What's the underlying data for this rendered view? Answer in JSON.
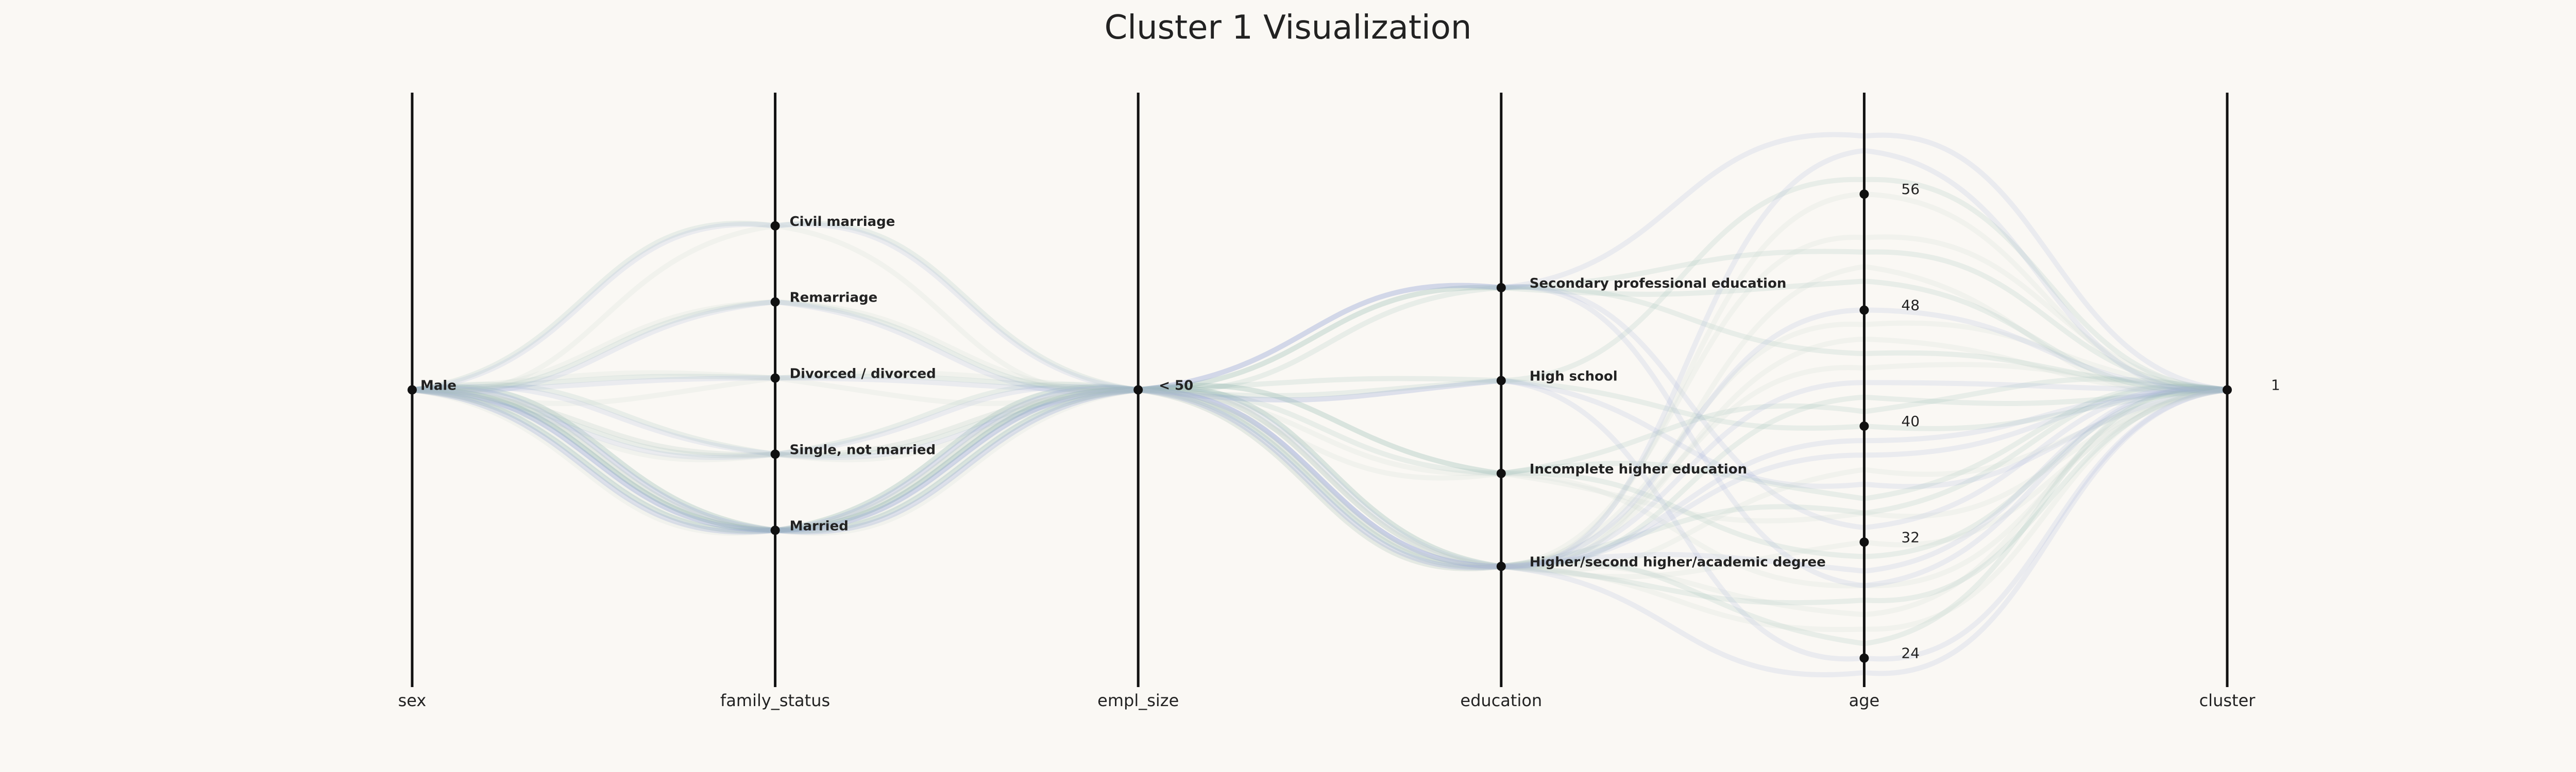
{
  "chart_data": {
    "type": "parallel_coordinates",
    "title": "Cluster 1 Visualization",
    "line_colors": [
      "#8fb5ac",
      "#9aa8d8",
      "#c8d4d0"
    ],
    "axis_color": "#111111",
    "axes": [
      {
        "name": "sex",
        "ticks": [
          {
            "label": "Male",
            "value": 0
          }
        ],
        "range": [
          -1,
          1
        ]
      },
      {
        "name": "family_status",
        "ticks": [
          {
            "label": "Civil marriage",
            "value": 4
          },
          {
            "label": "Remarriage",
            "value": 3
          },
          {
            "label": "Divorced / divorced",
            "value": 2
          },
          {
            "label": "Single, not married",
            "value": 1
          },
          {
            "label": "Married",
            "value": 0
          }
        ],
        "range": [
          -2.06,
          5.75
        ]
      },
      {
        "name": "empl_size",
        "ticks": [
          {
            "label": "< 50",
            "value": 0
          }
        ],
        "range": [
          -1,
          1
        ]
      },
      {
        "name": "education",
        "ticks": [
          {
            "label": "Secondary professional education",
            "value": 3
          },
          {
            "label": "High school",
            "value": 2
          },
          {
            "label": "Incomplete higher education",
            "value": 1
          },
          {
            "label": "Higher/second higher/academic degree",
            "value": 0
          }
        ],
        "range": [
          -1.3,
          5.1
        ]
      },
      {
        "name": "age",
        "ticks": [
          {
            "label": "56",
            "value": 56
          },
          {
            "label": "48",
            "value": 48
          },
          {
            "label": "40",
            "value": 40
          },
          {
            "label": "32",
            "value": 32
          },
          {
            "label": "24",
            "value": 24
          }
        ],
        "range": [
          22,
          63
        ]
      },
      {
        "name": "cluster",
        "ticks": [
          {
            "label": "1",
            "value": 1
          }
        ],
        "range": [
          0,
          2
        ]
      }
    ],
    "records": [
      {
        "sex": 0,
        "family_status": 0,
        "empl_size": 0,
        "education": 0,
        "age": 34,
        "cluster": 1
      },
      {
        "sex": 0,
        "family_status": 0,
        "empl_size": 0,
        "education": 0,
        "age": 30,
        "cluster": 1
      },
      {
        "sex": 0,
        "family_status": 0,
        "empl_size": 0,
        "education": 0,
        "age": 27,
        "cluster": 1
      },
      {
        "sex": 0,
        "family_status": 0,
        "empl_size": 0,
        "education": 3,
        "age": 45,
        "cluster": 1
      },
      {
        "sex": 0,
        "family_status": 0,
        "empl_size": 0,
        "education": 0,
        "age": 38,
        "cluster": 1
      },
      {
        "sex": 0,
        "family_status": 0,
        "empl_size": 0,
        "education": 1,
        "age": 29,
        "cluster": 1
      },
      {
        "sex": 0,
        "family_status": 0,
        "empl_size": 0,
        "education": 0,
        "age": 42,
        "cluster": 1
      },
      {
        "sex": 0,
        "family_status": 0,
        "empl_size": 0,
        "education": 2,
        "age": 36,
        "cluster": 1
      },
      {
        "sex": 0,
        "family_status": 0,
        "empl_size": 0,
        "education": 0,
        "age": 51,
        "cluster": 1
      },
      {
        "sex": 0,
        "family_status": 0,
        "empl_size": 0,
        "education": 0,
        "age": 25,
        "cluster": 1
      },
      {
        "sex": 0,
        "family_status": 0,
        "empl_size": 0,
        "education": 3,
        "age": 33,
        "cluster": 1
      },
      {
        "sex": 0,
        "family_status": 0,
        "empl_size": 0,
        "education": 0,
        "age": 47,
        "cluster": 1
      },
      {
        "sex": 0,
        "family_status": 0,
        "empl_size": 0,
        "education": 1,
        "age": 31,
        "cluster": 1
      },
      {
        "sex": 0,
        "family_status": 0,
        "empl_size": 0,
        "education": 0,
        "age": 39,
        "cluster": 1
      },
      {
        "sex": 0,
        "family_status": 1,
        "empl_size": 0,
        "education": 0,
        "age": 26,
        "cluster": 1
      },
      {
        "sex": 0,
        "family_status": 1,
        "empl_size": 0,
        "education": 0,
        "age": 28,
        "cluster": 1
      },
      {
        "sex": 0,
        "family_status": 1,
        "empl_size": 0,
        "education": 2,
        "age": 24,
        "cluster": 1
      },
      {
        "sex": 0,
        "family_status": 1,
        "empl_size": 0,
        "education": 0,
        "age": 32,
        "cluster": 1
      },
      {
        "sex": 0,
        "family_status": 1,
        "empl_size": 0,
        "education": 1,
        "age": 35,
        "cluster": 1
      },
      {
        "sex": 0,
        "family_status": 1,
        "empl_size": 0,
        "education": 3,
        "age": 29,
        "cluster": 1
      },
      {
        "sex": 0,
        "family_status": 2,
        "empl_size": 0,
        "education": 0,
        "age": 44,
        "cluster": 1
      },
      {
        "sex": 0,
        "family_status": 2,
        "empl_size": 0,
        "education": 3,
        "age": 52,
        "cluster": 1
      },
      {
        "sex": 0,
        "family_status": 2,
        "empl_size": 0,
        "education": 0,
        "age": 48,
        "cluster": 1
      },
      {
        "sex": 0,
        "family_status": 3,
        "empl_size": 0,
        "education": 0,
        "age": 56,
        "cluster": 1
      },
      {
        "sex": 0,
        "family_status": 3,
        "empl_size": 0,
        "education": 2,
        "age": 40,
        "cluster": 1
      },
      {
        "sex": 0,
        "family_status": 3,
        "empl_size": 0,
        "education": 0,
        "age": 59,
        "cluster": 1
      },
      {
        "sex": 0,
        "family_status": 4,
        "empl_size": 0,
        "education": 0,
        "age": 37,
        "cluster": 1
      },
      {
        "sex": 0,
        "family_status": 4,
        "empl_size": 0,
        "education": 1,
        "age": 41,
        "cluster": 1
      },
      {
        "sex": 0,
        "family_status": 4,
        "empl_size": 0,
        "education": 3,
        "age": 60,
        "cluster": 1
      },
      {
        "sex": 0,
        "family_status": 0,
        "empl_size": 0,
        "education": 0,
        "age": 53,
        "cluster": 1
      },
      {
        "sex": 0,
        "family_status": 0,
        "empl_size": 0,
        "education": 2,
        "age": 57,
        "cluster": 1
      },
      {
        "sex": 0,
        "family_status": 0,
        "empl_size": 0,
        "education": 0,
        "age": 43,
        "cluster": 1
      },
      {
        "sex": 0,
        "family_status": 1,
        "empl_size": 0,
        "education": 0,
        "age": 46,
        "cluster": 1
      },
      {
        "sex": 0,
        "family_status": 0,
        "empl_size": 0,
        "education": 3,
        "age": 50,
        "cluster": 1
      },
      {
        "sex": 0,
        "family_status": 0,
        "empl_size": 0,
        "education": 0,
        "age": 23,
        "cluster": 1
      },
      {
        "sex": 0,
        "family_status": 2,
        "empl_size": 0,
        "education": 1,
        "age": 34,
        "cluster": 1
      }
    ]
  }
}
